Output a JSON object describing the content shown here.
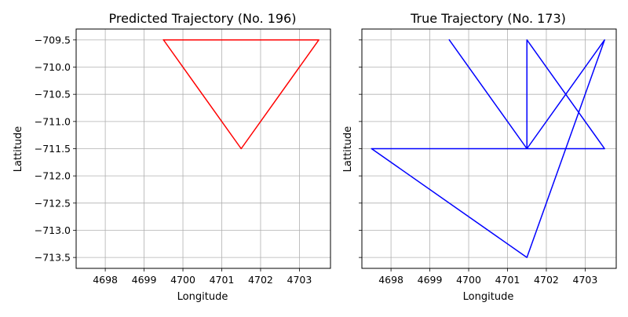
{
  "chart_data": [
    {
      "type": "line",
      "title": "Predicted Trajectory (No. 196)",
      "xlabel": "Longitude",
      "ylabel": "Lattitude",
      "xlim": [
        4697.25,
        4703.8
      ],
      "ylim": [
        -713.7,
        -709.3
      ],
      "xticks": [
        4698,
        4699,
        4700,
        4701,
        4702,
        4703
      ],
      "yticks": [
        -709.5,
        -710.0,
        -710.5,
        -711.0,
        -711.5,
        -712.0,
        -712.5,
        -713.0,
        -713.5
      ],
      "xtick_labels": [
        "4698",
        "4699",
        "4700",
        "4701",
        "4702",
        "4703"
      ],
      "ytick_labels": [
        "−709.5",
        "−710.0",
        "−710.5",
        "−711.0",
        "−711.5",
        "−712.0",
        "−712.5",
        "−713.0",
        "−713.5"
      ],
      "show_ytick_labels": true,
      "grid": true,
      "series": [
        {
          "name": "predicted",
          "color": "#ff0000",
          "x": [
            4699.5,
            4703.5,
            4701.5,
            4699.5
          ],
          "y": [
            -709.5,
            -709.5,
            -711.5,
            -709.5
          ]
        }
      ]
    },
    {
      "type": "line",
      "title": "True Trajectory (No. 173)",
      "xlabel": "Longitude",
      "ylabel": "Lattitude",
      "xlim": [
        4697.25,
        4703.8
      ],
      "ylim": [
        -713.7,
        -709.3
      ],
      "xticks": [
        4698,
        4699,
        4700,
        4701,
        4702,
        4703
      ],
      "yticks": [
        -709.5,
        -710.0,
        -710.5,
        -711.0,
        -711.5,
        -712.0,
        -712.5,
        -713.0,
        -713.5
      ],
      "xtick_labels": [
        "4698",
        "4699",
        "4700",
        "4701",
        "4702",
        "4703"
      ],
      "ytick_labels": [],
      "show_ytick_labels": false,
      "grid": true,
      "series": [
        {
          "name": "true",
          "color": "#0000ff",
          "x": [
            4699.5,
            4701.5,
            4703.5,
            4701.5,
            4701.5,
            4703.5,
            4697.5,
            4701.5,
            4703.5,
            4701.5,
            4703.5,
            4701.5,
            4701.5,
            4697.5
          ],
          "y": [
            -709.5,
            -711.5,
            -709.5,
            -711.5,
            -709.5,
            -711.5,
            -711.5,
            -713.5,
            -709.5,
            -711.5,
            -711.5,
            -709.5,
            -711.5,
            -711.5
          ]
        }
      ]
    }
  ]
}
